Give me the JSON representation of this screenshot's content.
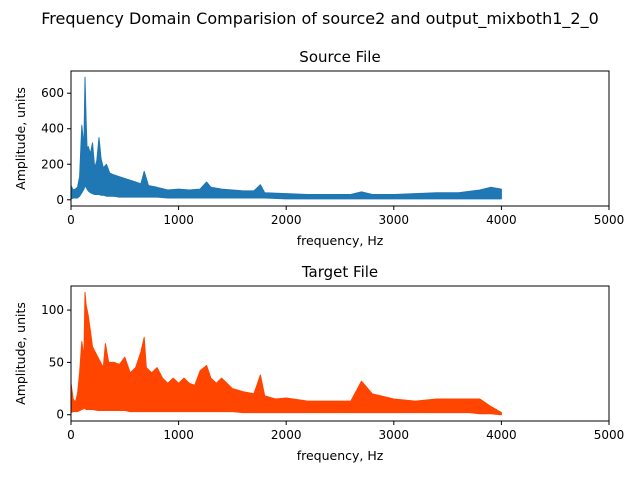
{
  "figure": {
    "suptitle": "Frequency Domain Comparision of source2 and output_mixboth1_2_0"
  },
  "chart_data": [
    {
      "type": "line",
      "title": "Source File",
      "xlabel": "frequency, Hz",
      "ylabel": "Amplitude, units",
      "xlim": [
        0,
        5000
      ],
      "ylim": [
        -35,
        725
      ],
      "xticks": [
        0,
        1000,
        2000,
        3000,
        4000,
        5000
      ],
      "yticks": [
        0,
        200,
        400,
        600
      ],
      "color": "#1f77b4",
      "series": [
        {
          "x": [
            0,
            20,
            40,
            60,
            80,
            100,
            120,
            130,
            140,
            150,
            160,
            180,
            200,
            220,
            240,
            260,
            280,
            300,
            330,
            360,
            400,
            450,
            500,
            550,
            600,
            650,
            680,
            720,
            800,
            900,
            1000,
            1100,
            1200,
            1260,
            1300,
            1400,
            1500,
            1600,
            1700,
            1760,
            1800,
            2000,
            2200,
            2400,
            2600,
            2700,
            2800,
            3000,
            3200,
            3400,
            3600,
            3800,
            3900,
            4000
          ],
          "upper": [
            80,
            55,
            60,
            70,
            130,
            420,
            300,
            690,
            450,
            280,
            300,
            260,
            320,
            180,
            220,
            350,
            230,
            180,
            200,
            150,
            140,
            130,
            120,
            110,
            100,
            90,
            160,
            80,
            70,
            55,
            60,
            55,
            60,
            100,
            70,
            60,
            55,
            50,
            50,
            85,
            40,
            35,
            30,
            30,
            30,
            45,
            30,
            30,
            35,
            40,
            40,
            55,
            70,
            60
          ],
          "lower": [
            5,
            10,
            10,
            10,
            20,
            40,
            60,
            80,
            70,
            60,
            50,
            40,
            35,
            30,
            30,
            30,
            25,
            25,
            20,
            20,
            20,
            15,
            15,
            15,
            15,
            15,
            15,
            15,
            15,
            10,
            10,
            10,
            10,
            10,
            10,
            10,
            10,
            10,
            10,
            10,
            10,
            5,
            5,
            5,
            5,
            5,
            5,
            5,
            5,
            5,
            5,
            5,
            5,
            5
          ]
        }
      ]
    },
    {
      "type": "line",
      "title": "Target File",
      "xlabel": "frequency, Hz",
      "ylabel": "Amplitude, units",
      "xlim": [
        0,
        5000
      ],
      "ylim": [
        -6,
        123
      ],
      "xticks": [
        0,
        1000,
        2000,
        3000,
        4000,
        5000
      ],
      "yticks": [
        0,
        50,
        100
      ],
      "color": "#ff4500",
      "series": [
        {
          "x": [
            0,
            20,
            40,
            60,
            80,
            100,
            120,
            130,
            140,
            160,
            180,
            200,
            250,
            300,
            320,
            350,
            400,
            450,
            500,
            550,
            600,
            650,
            680,
            700,
            750,
            800,
            850,
            900,
            950,
            1000,
            1050,
            1100,
            1150,
            1200,
            1260,
            1300,
            1350,
            1400,
            1500,
            1600,
            1700,
            1760,
            1800,
            1900,
            2000,
            2200,
            2400,
            2600,
            2700,
            2800,
            3000,
            3200,
            3400,
            3600,
            3700,
            3800,
            3900,
            4000
          ],
          "upper": [
            30,
            15,
            12,
            20,
            40,
            70,
            55,
            117,
            105,
            95,
            80,
            65,
            55,
            45,
            68,
            50,
            50,
            48,
            55,
            40,
            45,
            60,
            74,
            45,
            40,
            45,
            35,
            30,
            35,
            30,
            35,
            30,
            28,
            42,
            47,
            35,
            30,
            35,
            25,
            22,
            20,
            38,
            18,
            15,
            16,
            13,
            13,
            13,
            32,
            20,
            15,
            13,
            15,
            15,
            15,
            15,
            8,
            2
          ],
          "lower": [
            2,
            3,
            3,
            3,
            4,
            5,
            6,
            6,
            5,
            5,
            5,
            5,
            4,
            4,
            4,
            4,
            4,
            4,
            4,
            3,
            3,
            3,
            3,
            3,
            3,
            3,
            3,
            3,
            3,
            3,
            3,
            3,
            3,
            3,
            3,
            3,
            3,
            3,
            3,
            2,
            2,
            2,
            2,
            2,
            2,
            2,
            2,
            2,
            2,
            2,
            2,
            2,
            2,
            2,
            2,
            1,
            1,
            0
          ]
        }
      ]
    }
  ]
}
